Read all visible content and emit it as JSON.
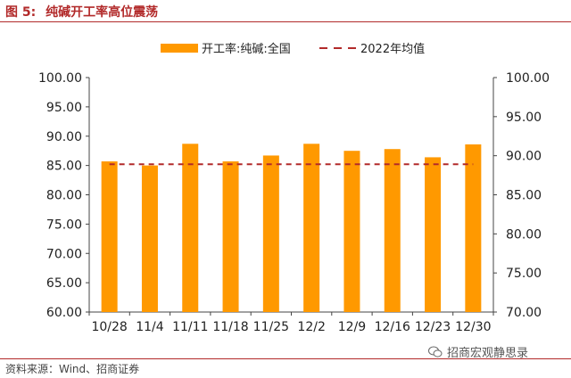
{
  "header": {
    "figure_label": "图 5:",
    "title_text": "纯碱开工率高位震荡"
  },
  "legend": {
    "bar_label": "开工率:纯碱:全国",
    "line_label": "2022年均值"
  },
  "footer": {
    "source": "资料来源：Wind、招商证券",
    "watermark": "招商宏观静思录"
  },
  "colors": {
    "accent": "#b22a2a",
    "bar": "#ff9900",
    "average_line": "#b22a2a"
  },
  "chart_data": {
    "type": "bar",
    "categories": [
      "10/28",
      "11/4",
      "11/11",
      "11/18",
      "11/25",
      "12/2",
      "12/9",
      "12/16",
      "12/23",
      "12/30"
    ],
    "series": [
      {
        "name": "开工率:纯碱:全国",
        "axis": "left",
        "values": [
          85.7,
          85.0,
          88.7,
          85.7,
          86.7,
          88.7,
          87.5,
          87.8,
          86.4,
          88.6
        ]
      },
      {
        "name": "2022年均值",
        "axis": "right",
        "chart_type": "line",
        "style": "dashed",
        "values": [
          88.9,
          88.9,
          88.9,
          88.9,
          88.9,
          88.9,
          88.9,
          88.9,
          88.9,
          88.9
        ]
      }
    ],
    "y_left": {
      "lim": [
        60,
        100
      ],
      "ticks": [
        "60.00",
        "65.00",
        "70.00",
        "75.00",
        "80.00",
        "85.00",
        "90.00",
        "95.00",
        "100.00"
      ]
    },
    "y_right": {
      "lim": [
        70,
        100
      ],
      "ticks": [
        "70.00",
        "75.00",
        "80.00",
        "85.00",
        "90.00",
        "95.00",
        "100.00"
      ]
    },
    "grid": false,
    "legend_position": "top"
  }
}
